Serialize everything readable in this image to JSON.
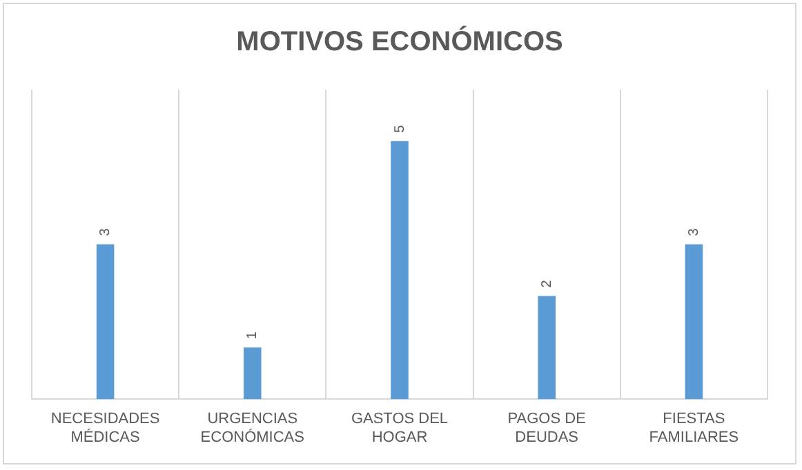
{
  "chart_data": {
    "type": "bar",
    "title": "MOTIVOS ECONÓMICOS",
    "categories": [
      "NECESIDADES MÉDICAS",
      "URGENCIAS ECONÓMICAS",
      "GASTOS DEL HOGAR",
      "PAGOS DE DEUDAS",
      "FIESTAS FAMILIARES"
    ],
    "values": [
      3,
      1,
      5,
      2,
      3
    ],
    "color": "#5b9bd5",
    "data_labels": true,
    "grid": "x",
    "tick_labels": "x",
    "legend": false
  }
}
